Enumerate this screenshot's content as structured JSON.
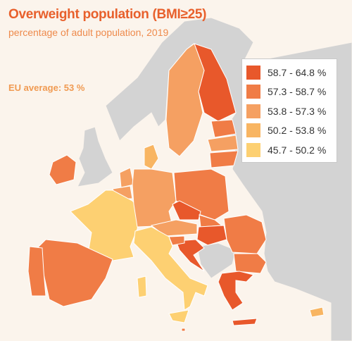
{
  "header": {
    "title": "Overweight population (BMI≥25)",
    "subtitle": "percentage of adult population, 2019",
    "note": "EU average: 53 %"
  },
  "legend": {
    "items": [
      {
        "label": "58.7 - 64.8 %",
        "color": "#e8582b"
      },
      {
        "label": "57.3 - 58.7 %",
        "color": "#f07c46"
      },
      {
        "label": "53.8 - 57.3 %",
        "color": "#f5a062"
      },
      {
        "label": "50.2 - 53.8 %",
        "color": "#f8b562"
      },
      {
        "label": "45.7 - 50.2 %",
        "color": "#fdd072"
      }
    ]
  }
}
